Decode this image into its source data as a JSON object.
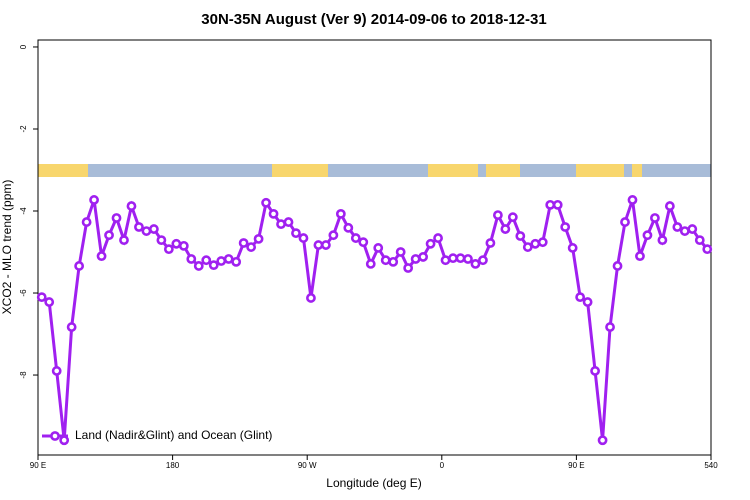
{
  "chart_data": {
    "type": "line",
    "title": "30N-35N August (Ver 9)   2014-09-06 to 2018-12-31",
    "x_label": "Longitude (deg E)",
    "y_label": "XCO2 - MLO trend (ppm)",
    "x": [
      92.5,
      97.5,
      102.5,
      107.5,
      112.5,
      117.5,
      122.5,
      127.5,
      132.5,
      137.5,
      142.5,
      147.5,
      152.5,
      157.5,
      162.5,
      167.5,
      172.5,
      177.5,
      182.5,
      187.5,
      192.5,
      197.5,
      202.5,
      207.5,
      212.5,
      217.5,
      222.5,
      227.5,
      232.5,
      237.5,
      242.5,
      247.5,
      252.5,
      257.5,
      262.5,
      267.5,
      272.5,
      277.5,
      282.5,
      287.5,
      292.5,
      297.5,
      302.5,
      307.5,
      312.5,
      317.5,
      322.5,
      327.5,
      332.5,
      337.5,
      342.5,
      347.5,
      352.5,
      357.5,
      362.5,
      367.5,
      372.5,
      377.5,
      382.5,
      387.5,
      392.5,
      397.5,
      402.5,
      407.5,
      412.5,
      417.5,
      422.5,
      427.5,
      432.5,
      437.5,
      442.5,
      447.5,
      452.5,
      457.5,
      462.5,
      467.5,
      472.5,
      477.5,
      482.5,
      487.5,
      492.5,
      497.5,
      502.5,
      507.5,
      512.5,
      517.5,
      522.5,
      527.5,
      532.5,
      537.5
    ],
    "series": [
      {
        "name": "Land (Nadir&Glint) and Ocean (Glint)",
        "color": "#a020f0",
        "values": [
          -6.1,
          -6.22,
          -7.9,
          -9.59,
          -6.83,
          -5.34,
          -4.27,
          -3.73,
          -5.1,
          -4.59,
          -4.17,
          -4.71,
          -3.88,
          -4.39,
          -4.49,
          -4.44,
          -4.71,
          -4.93,
          -4.8,
          -4.85,
          -5.17,
          -5.34,
          -5.2,
          -5.32,
          -5.22,
          -5.17,
          -5.24,
          -4.78,
          -4.88,
          -4.68,
          -3.8,
          -4.07,
          -4.32,
          -4.27,
          -4.54,
          -4.66,
          -6.12,
          -4.83,
          -4.83,
          -4.59,
          -4.07,
          -4.41,
          -4.66,
          -4.76,
          -5.29,
          -4.9,
          -5.2,
          -5.24,
          -5.0,
          -5.39,
          -5.17,
          -5.12,
          -4.8,
          -4.66,
          -5.2,
          -5.15,
          -5.15,
          -5.17,
          -5.29,
          -5.2,
          -4.78,
          -4.1,
          -4.44,
          -4.15,
          -4.61,
          -4.88,
          -4.8,
          -4.76,
          -3.85,
          -3.85,
          -4.39,
          -4.9,
          -6.1,
          -6.22,
          -7.9,
          -9.59,
          -6.83,
          -5.34,
          -4.27,
          -3.73,
          -5.1,
          -4.59,
          -4.17,
          -4.71,
          -3.88,
          -4.39,
          -4.49,
          -4.44,
          -4.71,
          -4.93
        ]
      }
    ],
    "xlim": [
      90,
      540
    ],
    "xticks": [
      {
        "value": 90,
        "label": "90 E"
      },
      180,
      {
        "value": 270,
        "label": "90 W"
      },
      {
        "value": 360,
        "label": "0"
      },
      {
        "value": 450,
        "label": "90 E"
      },
      540
    ],
    "ylim": [
      -9.95,
      0.17
    ],
    "yticks": [
      0,
      -2,
      -4,
      -6,
      -8
    ],
    "legend": "bottom-left"
  }
}
